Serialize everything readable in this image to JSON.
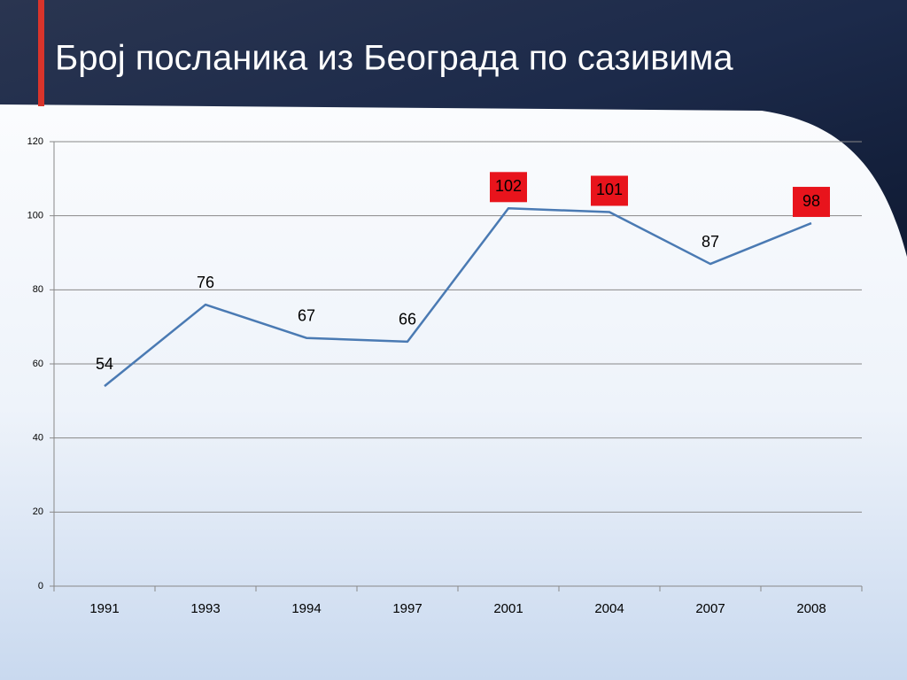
{
  "chart_data": {
    "type": "line",
    "title": "Број посланика из Београда по сазивима",
    "categories": [
      "1991",
      "1993",
      "1994",
      "1997",
      "2001",
      "2004",
      "2007",
      "2008"
    ],
    "values": [
      54,
      76,
      67,
      66,
      102,
      101,
      87,
      98
    ],
    "color": "#4a7ab3",
    "ylim": [
      0,
      120
    ],
    "yticks": [
      0,
      20,
      40,
      60,
      80,
      100,
      120
    ],
    "grid": true,
    "highlight_categories": [
      "2001",
      "2004",
      "2008"
    ],
    "highlight_color": "#e8141c"
  }
}
